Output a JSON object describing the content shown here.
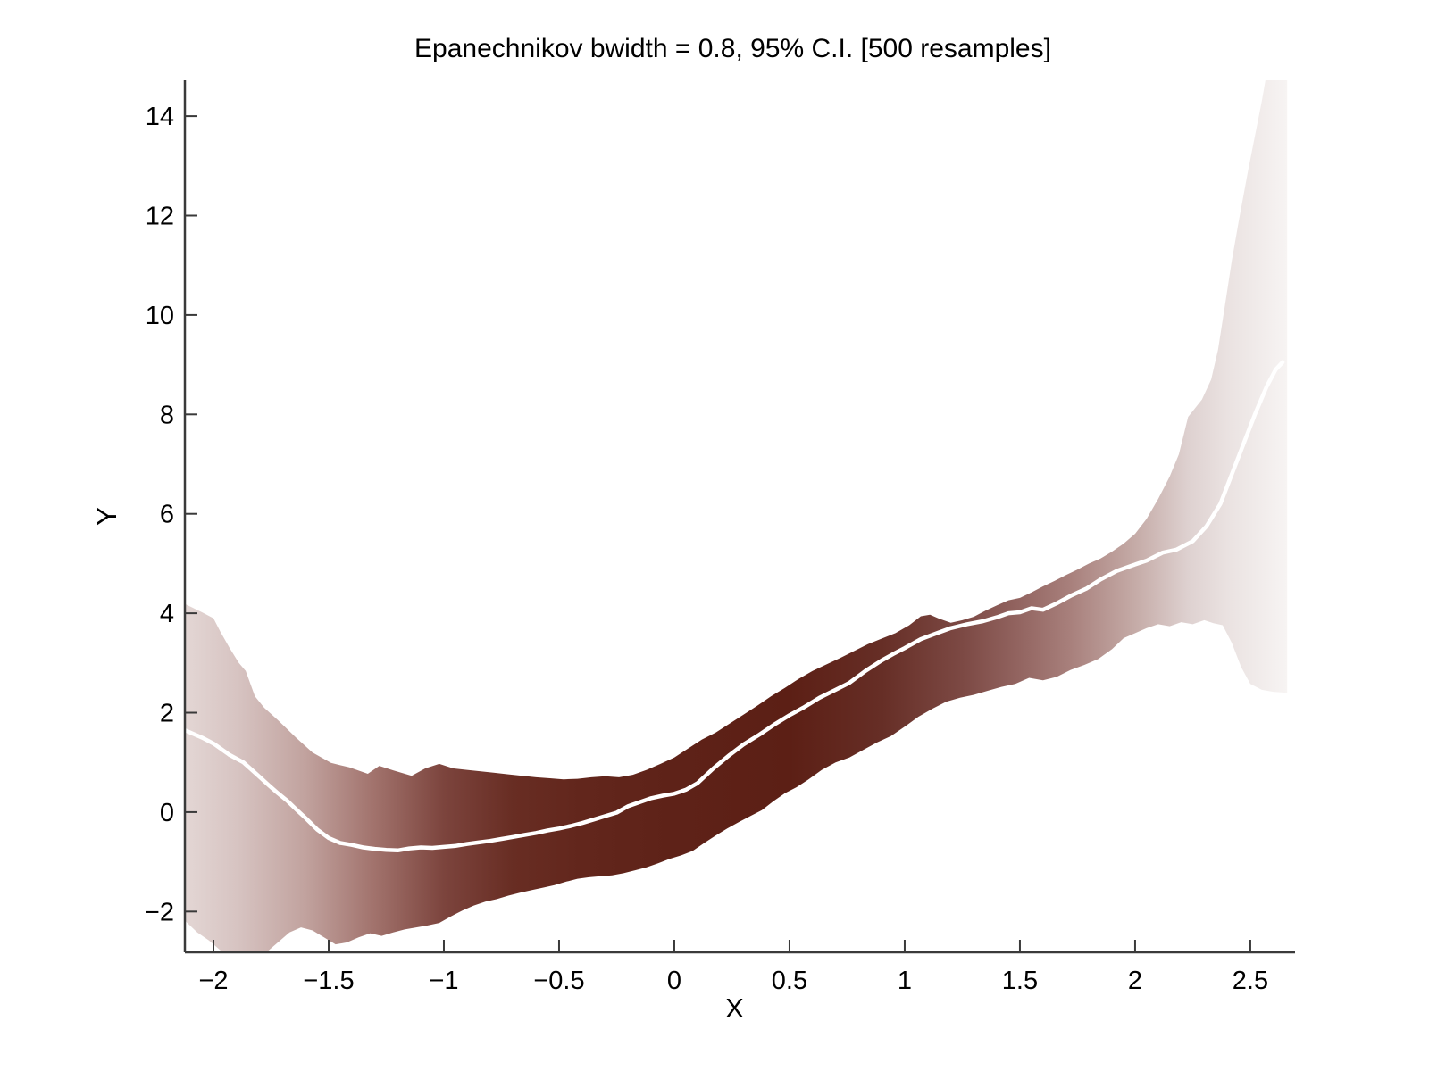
{
  "figure": {
    "background": "#ffffff"
  },
  "chart_data": {
    "type": "area",
    "title": "Epanechnikov bwidth = 0.8, 95% C.I. [500 resamples]",
    "kernel": "Epanechnikov",
    "bandwidth": 0.8,
    "ci_level": "95%",
    "resamples": 500,
    "xlabel": "X",
    "ylabel": "Y",
    "xlim": [
      -2.124,
      2.694
    ],
    "ylim": [
      -2.82,
      14.72
    ],
    "grid": false,
    "legend": false,
    "axis_color": "#3a3a3a",
    "text_color": "#000000",
    "line_color": "#ffffff",
    "x_ticks": [
      -2,
      -1.5,
      -1,
      -0.5,
      0,
      0.5,
      1,
      1.5,
      2,
      2.5
    ],
    "x_tick_labels": [
      "−2",
      "−1.5",
      "−1",
      "−0.5",
      "0",
      "0.5",
      "1",
      "1.5",
      "2",
      "2.5"
    ],
    "y_ticks": [
      -2,
      0,
      2,
      4,
      6,
      8,
      10,
      12,
      14
    ],
    "y_tick_labels": [
      "−2",
      "0",
      "2",
      "4",
      "6",
      "8",
      "10",
      "12",
      "14"
    ],
    "band_gradient": [
      {
        "x": -2.12,
        "color": "#e3d6d4"
      },
      {
        "x": -1.9,
        "color": "#d7c4c2"
      },
      {
        "x": -1.6,
        "color": "#c1a29e"
      },
      {
        "x": -1.3,
        "color": "#a1726c"
      },
      {
        "x": -1.0,
        "color": "#7c443d"
      },
      {
        "x": -0.7,
        "color": "#682d23"
      },
      {
        "x": -0.4,
        "color": "#62261c"
      },
      {
        "x": 0.0,
        "color": "#5e2218"
      },
      {
        "x": 0.5,
        "color": "#5c1f15"
      },
      {
        "x": 0.9,
        "color": "#662e26"
      },
      {
        "x": 1.26,
        "color": "#7d4a45"
      },
      {
        "x": 1.5,
        "color": "#936561"
      },
      {
        "x": 1.72,
        "color": "#a8807c"
      },
      {
        "x": 2.0,
        "color": "#c5aba7"
      },
      {
        "x": 2.23,
        "color": "#ded1d0"
      },
      {
        "x": 2.4,
        "color": "#eae2e1"
      },
      {
        "x": 2.66,
        "color": "#f7f4f3"
      }
    ],
    "series": [
      {
        "name": "kernel-regression-mean",
        "type": "line",
        "points": [
          [
            -2.12,
            1.64
          ],
          [
            -2.05,
            1.5
          ],
          [
            -2.0,
            1.38
          ],
          [
            -1.93,
            1.15
          ],
          [
            -1.87,
            1.0
          ],
          [
            -1.81,
            0.75
          ],
          [
            -1.76,
            0.54
          ],
          [
            -1.72,
            0.38
          ],
          [
            -1.68,
            0.23
          ],
          [
            -1.64,
            0.05
          ],
          [
            -1.6,
            -0.12
          ],
          [
            -1.55,
            -0.35
          ],
          [
            -1.5,
            -0.52
          ],
          [
            -1.45,
            -0.62
          ],
          [
            -1.4,
            -0.66
          ],
          [
            -1.35,
            -0.71
          ],
          [
            -1.3,
            -0.74
          ],
          [
            -1.25,
            -0.76
          ],
          [
            -1.2,
            -0.77
          ],
          [
            -1.15,
            -0.73
          ],
          [
            -1.1,
            -0.71
          ],
          [
            -1.05,
            -0.72
          ],
          [
            -1.0,
            -0.7
          ],
          [
            -0.95,
            -0.68
          ],
          [
            -0.9,
            -0.64
          ],
          [
            -0.85,
            -0.61
          ],
          [
            -0.8,
            -0.58
          ],
          [
            -0.75,
            -0.54
          ],
          [
            -0.7,
            -0.5
          ],
          [
            -0.65,
            -0.46
          ],
          [
            -0.6,
            -0.42
          ],
          [
            -0.55,
            -0.37
          ],
          [
            -0.5,
            -0.33
          ],
          [
            -0.45,
            -0.28
          ],
          [
            -0.4,
            -0.22
          ],
          [
            -0.35,
            -0.15
          ],
          [
            -0.3,
            -0.08
          ],
          [
            -0.25,
            -0.01
          ],
          [
            -0.2,
            0.12
          ],
          [
            -0.15,
            0.2
          ],
          [
            -0.1,
            0.28
          ],
          [
            -0.05,
            0.33
          ],
          [
            0.0,
            0.37
          ],
          [
            0.05,
            0.45
          ],
          [
            0.1,
            0.58
          ],
          [
            0.17,
            0.88
          ],
          [
            0.24,
            1.15
          ],
          [
            0.3,
            1.36
          ],
          [
            0.37,
            1.56
          ],
          [
            0.44,
            1.78
          ],
          [
            0.5,
            1.95
          ],
          [
            0.56,
            2.1
          ],
          [
            0.63,
            2.3
          ],
          [
            0.7,
            2.46
          ],
          [
            0.76,
            2.6
          ],
          [
            0.83,
            2.84
          ],
          [
            0.9,
            3.05
          ],
          [
            0.95,
            3.18
          ],
          [
            1.0,
            3.3
          ],
          [
            1.07,
            3.48
          ],
          [
            1.14,
            3.6
          ],
          [
            1.2,
            3.7
          ],
          [
            1.27,
            3.78
          ],
          [
            1.34,
            3.84
          ],
          [
            1.4,
            3.92
          ],
          [
            1.45,
            4.0
          ],
          [
            1.5,
            4.02
          ],
          [
            1.55,
            4.1
          ],
          [
            1.6,
            4.07
          ],
          [
            1.66,
            4.2
          ],
          [
            1.72,
            4.35
          ],
          [
            1.79,
            4.5
          ],
          [
            1.85,
            4.68
          ],
          [
            1.92,
            4.85
          ],
          [
            1.98,
            4.95
          ],
          [
            2.05,
            5.06
          ],
          [
            2.12,
            5.22
          ],
          [
            2.18,
            5.28
          ],
          [
            2.25,
            5.45
          ],
          [
            2.31,
            5.75
          ],
          [
            2.37,
            6.2
          ],
          [
            2.42,
            6.8
          ],
          [
            2.47,
            7.4
          ],
          [
            2.52,
            8.0
          ],
          [
            2.57,
            8.55
          ],
          [
            2.61,
            8.9
          ],
          [
            2.64,
            9.05
          ]
        ]
      },
      {
        "name": "ci-upper-95",
        "type": "band-upper",
        "points": [
          [
            -2.12,
            4.18
          ],
          [
            -2.05,
            4.02
          ],
          [
            -2.0,
            3.9
          ],
          [
            -1.97,
            3.63
          ],
          [
            -1.93,
            3.3
          ],
          [
            -1.89,
            3.0
          ],
          [
            -1.86,
            2.84
          ],
          [
            -1.82,
            2.33
          ],
          [
            -1.78,
            2.1
          ],
          [
            -1.72,
            1.85
          ],
          [
            -1.64,
            1.49
          ],
          [
            -1.57,
            1.2
          ],
          [
            -1.49,
            0.99
          ],
          [
            -1.41,
            0.9
          ],
          [
            -1.33,
            0.77
          ],
          [
            -1.28,
            0.93
          ],
          [
            -1.22,
            0.84
          ],
          [
            -1.14,
            0.73
          ],
          [
            -1.08,
            0.88
          ],
          [
            -1.02,
            0.97
          ],
          [
            -0.96,
            0.88
          ],
          [
            -0.9,
            0.85
          ],
          [
            -0.84,
            0.82
          ],
          [
            -0.78,
            0.79
          ],
          [
            -0.72,
            0.76
          ],
          [
            -0.66,
            0.73
          ],
          [
            -0.6,
            0.7
          ],
          [
            -0.54,
            0.68
          ],
          [
            -0.48,
            0.66
          ],
          [
            -0.42,
            0.67
          ],
          [
            -0.36,
            0.7
          ],
          [
            -0.3,
            0.72
          ],
          [
            -0.24,
            0.7
          ],
          [
            -0.18,
            0.75
          ],
          [
            -0.12,
            0.85
          ],
          [
            -0.06,
            0.97
          ],
          [
            0.0,
            1.1
          ],
          [
            0.06,
            1.28
          ],
          [
            0.12,
            1.46
          ],
          [
            0.18,
            1.6
          ],
          [
            0.24,
            1.78
          ],
          [
            0.3,
            1.96
          ],
          [
            0.36,
            2.14
          ],
          [
            0.42,
            2.33
          ],
          [
            0.48,
            2.5
          ],
          [
            0.54,
            2.68
          ],
          [
            0.6,
            2.84
          ],
          [
            0.66,
            2.97
          ],
          [
            0.72,
            3.1
          ],
          [
            0.78,
            3.24
          ],
          [
            0.84,
            3.38
          ],
          [
            0.9,
            3.49
          ],
          [
            0.96,
            3.6
          ],
          [
            1.02,
            3.76
          ],
          [
            1.07,
            3.94
          ],
          [
            1.11,
            3.97
          ],
          [
            1.15,
            3.89
          ],
          [
            1.2,
            3.81
          ],
          [
            1.25,
            3.86
          ],
          [
            1.3,
            3.93
          ],
          [
            1.35,
            4.05
          ],
          [
            1.4,
            4.16
          ],
          [
            1.45,
            4.26
          ],
          [
            1.5,
            4.31
          ],
          [
            1.55,
            4.42
          ],
          [
            1.6,
            4.54
          ],
          [
            1.65,
            4.65
          ],
          [
            1.7,
            4.77
          ],
          [
            1.75,
            4.88
          ],
          [
            1.8,
            5.0
          ],
          [
            1.85,
            5.1
          ],
          [
            1.9,
            5.24
          ],
          [
            1.95,
            5.4
          ],
          [
            2.0,
            5.6
          ],
          [
            2.05,
            5.9
          ],
          [
            2.1,
            6.3
          ],
          [
            2.15,
            6.75
          ],
          [
            2.19,
            7.2
          ],
          [
            2.23,
            7.95
          ],
          [
            2.29,
            8.3
          ],
          [
            2.33,
            8.7
          ],
          [
            2.36,
            9.3
          ],
          [
            2.39,
            10.2
          ],
          [
            2.42,
            11.1
          ],
          [
            2.45,
            11.9
          ],
          [
            2.49,
            12.9
          ],
          [
            2.52,
            13.6
          ],
          [
            2.55,
            14.3
          ],
          [
            2.58,
            15.1
          ],
          [
            2.62,
            15.6
          ],
          [
            2.66,
            15.9
          ]
        ]
      },
      {
        "name": "ci-lower-95",
        "type": "band-lower",
        "points": [
          [
            -2.12,
            -2.2
          ],
          [
            -2.07,
            -2.42
          ],
          [
            -2.02,
            -2.58
          ],
          [
            -1.97,
            -2.78
          ],
          [
            -1.92,
            -2.92
          ],
          [
            -1.87,
            -3.0
          ],
          [
            -1.82,
            -2.95
          ],
          [
            -1.77,
            -2.82
          ],
          [
            -1.72,
            -2.62
          ],
          [
            -1.67,
            -2.42
          ],
          [
            -1.62,
            -2.32
          ],
          [
            -1.57,
            -2.38
          ],
          [
            -1.52,
            -2.52
          ],
          [
            -1.47,
            -2.66
          ],
          [
            -1.42,
            -2.62
          ],
          [
            -1.37,
            -2.52
          ],
          [
            -1.32,
            -2.44
          ],
          [
            -1.27,
            -2.49
          ],
          [
            -1.22,
            -2.42
          ],
          [
            -1.17,
            -2.36
          ],
          [
            -1.12,
            -2.32
          ],
          [
            -1.07,
            -2.28
          ],
          [
            -1.02,
            -2.23
          ],
          [
            -0.97,
            -2.1
          ],
          [
            -0.92,
            -1.98
          ],
          [
            -0.87,
            -1.88
          ],
          [
            -0.82,
            -1.8
          ],
          [
            -0.77,
            -1.75
          ],
          [
            -0.72,
            -1.68
          ],
          [
            -0.67,
            -1.62
          ],
          [
            -0.62,
            -1.57
          ],
          [
            -0.57,
            -1.52
          ],
          [
            -0.52,
            -1.47
          ],
          [
            -0.47,
            -1.4
          ],
          [
            -0.42,
            -1.34
          ],
          [
            -0.37,
            -1.31
          ],
          [
            -0.32,
            -1.29
          ],
          [
            -0.27,
            -1.27
          ],
          [
            -0.22,
            -1.23
          ],
          [
            -0.17,
            -1.17
          ],
          [
            -0.12,
            -1.11
          ],
          [
            -0.07,
            -1.03
          ],
          [
            -0.02,
            -0.94
          ],
          [
            0.03,
            -0.87
          ],
          [
            0.08,
            -0.78
          ],
          [
            0.13,
            -0.62
          ],
          [
            0.18,
            -0.47
          ],
          [
            0.23,
            -0.33
          ],
          [
            0.28,
            -0.2
          ],
          [
            0.33,
            -0.08
          ],
          [
            0.38,
            0.04
          ],
          [
            0.43,
            0.22
          ],
          [
            0.48,
            0.38
          ],
          [
            0.53,
            0.5
          ],
          [
            0.58,
            0.65
          ],
          [
            0.64,
            0.85
          ],
          [
            0.7,
            1.0
          ],
          [
            0.76,
            1.1
          ],
          [
            0.82,
            1.25
          ],
          [
            0.88,
            1.4
          ],
          [
            0.94,
            1.53
          ],
          [
            1.0,
            1.72
          ],
          [
            1.06,
            1.92
          ],
          [
            1.12,
            2.08
          ],
          [
            1.18,
            2.22
          ],
          [
            1.24,
            2.3
          ],
          [
            1.3,
            2.36
          ],
          [
            1.36,
            2.44
          ],
          [
            1.42,
            2.52
          ],
          [
            1.48,
            2.58
          ],
          [
            1.54,
            2.7
          ],
          [
            1.6,
            2.65
          ],
          [
            1.66,
            2.72
          ],
          [
            1.72,
            2.86
          ],
          [
            1.78,
            2.96
          ],
          [
            1.84,
            3.08
          ],
          [
            1.9,
            3.28
          ],
          [
            1.95,
            3.5
          ],
          [
            2.0,
            3.6
          ],
          [
            2.05,
            3.7
          ],
          [
            2.1,
            3.78
          ],
          [
            2.15,
            3.74
          ],
          [
            2.2,
            3.82
          ],
          [
            2.25,
            3.78
          ],
          [
            2.3,
            3.86
          ],
          [
            2.34,
            3.8
          ],
          [
            2.38,
            3.76
          ],
          [
            2.42,
            3.4
          ],
          [
            2.46,
            2.92
          ],
          [
            2.5,
            2.58
          ],
          [
            2.55,
            2.46
          ],
          [
            2.6,
            2.42
          ],
          [
            2.66,
            2.4
          ]
        ]
      }
    ]
  }
}
